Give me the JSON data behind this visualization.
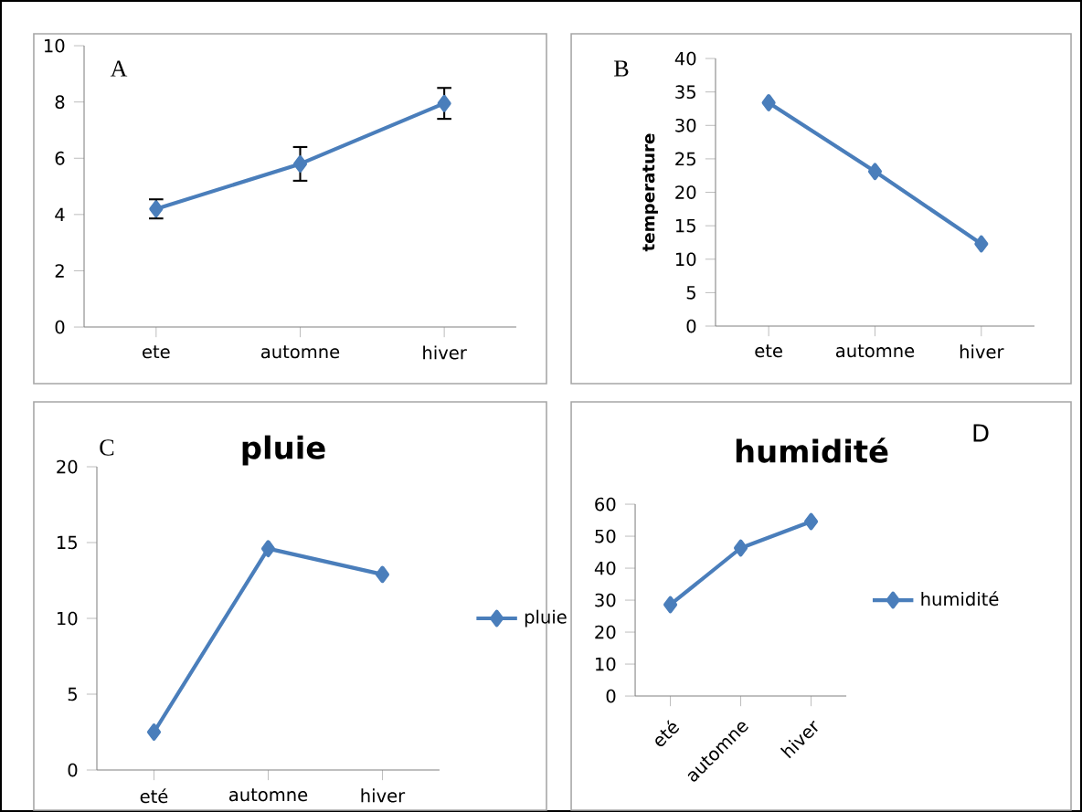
{
  "chart_data": [
    {
      "type": "line",
      "annotations": [
        "A"
      ],
      "categories": [
        "ete",
        "automne",
        "hiver"
      ],
      "values": [
        4.2,
        5.8,
        7.95
      ],
      "errors": [
        0.34,
        0.6,
        0.55
      ],
      "color": "#4a7ebb",
      "marker": "diamond",
      "ylim": [
        0,
        10
      ],
      "yticks": [
        0,
        2,
        4,
        6,
        8,
        10
      ]
    },
    {
      "type": "line",
      "annotations": [
        "B"
      ],
      "ylabel": "temperature",
      "categories": [
        "ete",
        "automne",
        "hiver"
      ],
      "values": [
        33.4,
        23.1,
        12.3
      ],
      "color": "#4a7ebb",
      "marker": "diamond",
      "ylim": [
        0,
        40
      ],
      "yticks": [
        0,
        5,
        10,
        15,
        20,
        25,
        30,
        35,
        40
      ]
    },
    {
      "type": "line",
      "title": "pluie",
      "annotations": [
        "C"
      ],
      "categories": [
        "eté",
        "automne",
        "hiver"
      ],
      "series": [
        {
          "name": "pluie",
          "color": "#4a7ebb",
          "values": [
            2.5,
            14.6,
            12.9
          ]
        }
      ],
      "marker": "diamond",
      "legend": "right",
      "ylim": [
        0,
        20
      ],
      "yticks": [
        0,
        5,
        10,
        15,
        20
      ]
    },
    {
      "type": "line",
      "title": "humidité",
      "annotations": [
        "D"
      ],
      "categories": [
        "eté",
        "automne",
        "hiver"
      ],
      "series": [
        {
          "name": "humidité",
          "color": "#4a7ebb",
          "values": [
            28.6,
            46.3,
            54.6
          ]
        }
      ],
      "marker": "diamond",
      "legend": "right",
      "ylim": [
        0,
        60
      ],
      "yticks": [
        0,
        10,
        20,
        30,
        40,
        50,
        60
      ]
    }
  ]
}
